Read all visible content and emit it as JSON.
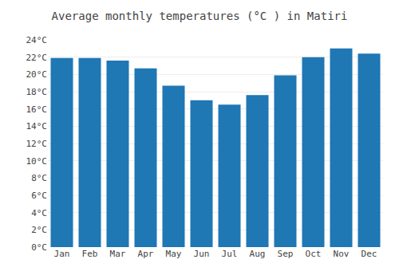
{
  "chart_data": {
    "type": "bar",
    "title": "Average monthly temperatures (°C ) in Matiri",
    "categories": [
      "Jan",
      "Feb",
      "Mar",
      "Apr",
      "May",
      "Jun",
      "Jul",
      "Aug",
      "Sep",
      "Oct",
      "Nov",
      "Dec"
    ],
    "values": [
      21.9,
      21.9,
      21.6,
      20.7,
      18.7,
      17.0,
      16.5,
      17.6,
      19.9,
      22.0,
      23.0,
      22.4
    ],
    "ylim": [
      0,
      24
    ],
    "yticks": [
      {
        "value": 0,
        "label": "0°C"
      },
      {
        "value": 2,
        "label": "2°C"
      },
      {
        "value": 4,
        "label": "4°C"
      },
      {
        "value": 6,
        "label": "6°C"
      },
      {
        "value": 8,
        "label": "8°C"
      },
      {
        "value": 10,
        "label": "10°C"
      },
      {
        "value": 12,
        "label": "12°C"
      },
      {
        "value": 14,
        "label": "14°C"
      },
      {
        "value": 16,
        "label": "16°C"
      },
      {
        "value": 18,
        "label": "18°C"
      },
      {
        "value": 20,
        "label": "20°C"
      },
      {
        "value": 22,
        "label": "22°C"
      },
      {
        "value": 24,
        "label": "24°C"
      }
    ],
    "grid": true
  }
}
